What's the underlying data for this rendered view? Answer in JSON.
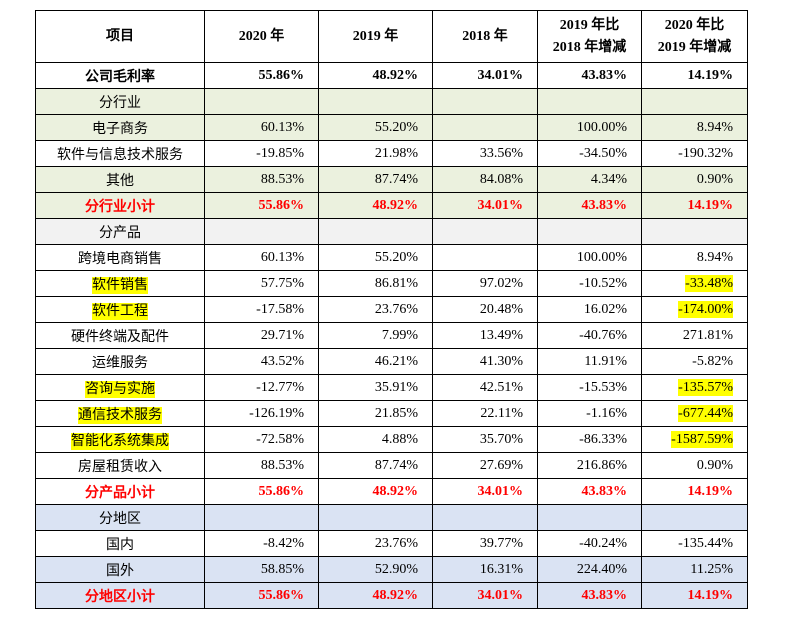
{
  "table": {
    "header": [
      "项目",
      "2020 年",
      "2019 年",
      "2018 年",
      "2019 年比\n2018 年增减",
      "2020 年比\n2019 年增减"
    ],
    "rows": [
      {
        "cells": [
          "公司毛利率",
          "55.86%",
          "48.92%",
          "34.01%",
          "43.83%",
          "14.19%"
        ],
        "bold": true
      },
      {
        "cells": [
          "分行业",
          null,
          null,
          null,
          null,
          null
        ],
        "fill": "#ebf1de"
      },
      {
        "cells": [
          "电子商务",
          "60.13%",
          "55.20%",
          null,
          "100.00%",
          "8.94%"
        ],
        "fill": "#ebf1de"
      },
      {
        "cells": [
          "软件与信息技术服务",
          "-19.85%",
          "21.98%",
          "33.56%",
          "-34.50%",
          "-190.32%"
        ]
      },
      {
        "cells": [
          "其他",
          "88.53%",
          "87.74%",
          "84.08%",
          "4.34%",
          "0.90%"
        ],
        "fill": "#ebf1de"
      },
      {
        "cells": [
          "分行业小计",
          "55.86%",
          "48.92%",
          "34.01%",
          "43.83%",
          "14.19%"
        ],
        "fill": "#ebf1de",
        "bold": true,
        "color": "#ff0000"
      },
      {
        "cells": [
          "分产品",
          null,
          null,
          null,
          null,
          null
        ],
        "fill": "#f2f2f2"
      },
      {
        "cells": [
          "跨境电商销售",
          "60.13%",
          "55.20%",
          null,
          "100.00%",
          "8.94%"
        ]
      },
      {
        "cells": [
          {
            "text": "软件销售",
            "highlight": "#ffff00"
          },
          "57.75%",
          "86.81%",
          "97.02%",
          "-10.52%",
          {
            "text": "-33.48%",
            "highlight": "#ffff00"
          }
        ]
      },
      {
        "cells": [
          {
            "text": "软件工程",
            "highlight": "#ffff00"
          },
          "-17.58%",
          "23.76%",
          "20.48%",
          "16.02%",
          {
            "text": "-174.00%",
            "highlight": "#ffff00"
          }
        ]
      },
      {
        "cells": [
          "硬件终端及配件",
          "29.71%",
          "7.99%",
          "13.49%",
          "-40.76%",
          "271.81%"
        ]
      },
      {
        "cells": [
          "运维服务",
          "43.52%",
          "46.21%",
          "41.30%",
          "11.91%",
          "-5.82%"
        ]
      },
      {
        "cells": [
          {
            "text": "咨询与实施",
            "highlight": "#ffff00"
          },
          "-12.77%",
          "35.91%",
          "42.51%",
          "-15.53%",
          {
            "text": "-135.57%",
            "highlight": "#ffff00"
          }
        ]
      },
      {
        "cells": [
          {
            "text": "通信技术服务",
            "highlight": "#ffff00"
          },
          "-126.19%",
          "21.85%",
          "22.11%",
          "-1.16%",
          {
            "text": "-677.44%",
            "highlight": "#ffff00"
          }
        ]
      },
      {
        "cells": [
          {
            "text": "智能化系统集成",
            "highlight": "#ffff00"
          },
          "-72.58%",
          "4.88%",
          "35.70%",
          "-86.33%",
          {
            "text": "-1587.59%",
            "highlight": "#ffff00"
          }
        ]
      },
      {
        "cells": [
          "房屋租赁收入",
          "88.53%",
          "87.74%",
          "27.69%",
          "216.86%",
          "0.90%"
        ]
      },
      {
        "cells": [
          "分产品小计",
          "55.86%",
          "48.92%",
          "34.01%",
          "43.83%",
          "14.19%"
        ],
        "bold": true,
        "color": "#ff0000"
      },
      {
        "cells": [
          "分地区",
          null,
          null,
          null,
          null,
          null
        ],
        "fill": "#dae3f3"
      },
      {
        "cells": [
          "国内",
          "-8.42%",
          "23.76%",
          "39.77%",
          "-40.24%",
          "-135.44%"
        ]
      },
      {
        "cells": [
          "国外",
          "58.85%",
          "52.90%",
          "16.31%",
          "224.40%",
          "11.25%"
        ],
        "fill": "#dae3f3"
      },
      {
        "cells": [
          "分地区小计",
          "55.86%",
          "48.92%",
          "34.01%",
          "43.83%",
          "14.19%"
        ],
        "fill": "#dae3f3",
        "bold": true,
        "color": "#ff0000"
      }
    ]
  }
}
